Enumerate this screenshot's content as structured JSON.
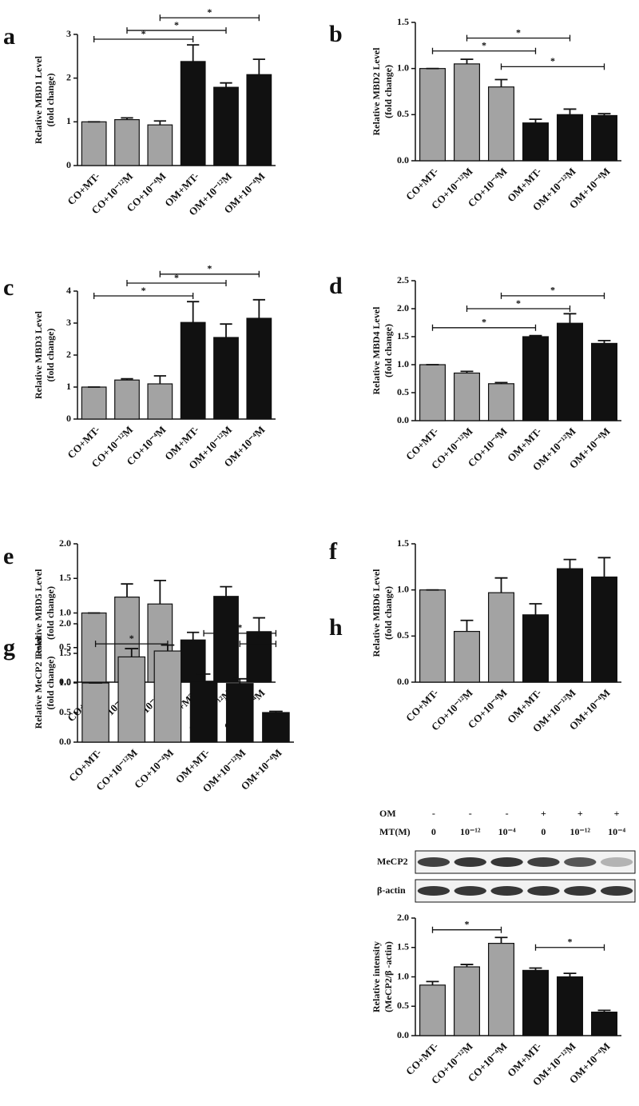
{
  "chart_data": [
    {
      "type": "bar",
      "panel": "a",
      "ylabel": [
        "Relative MBD1 Level",
        "(fold change)"
      ],
      "categories": [
        "CO+MT-",
        "CO+10⁻¹²M",
        "CO+10⁻⁴M",
        "OM+MT-",
        "OM+10⁻¹²M",
        "OM+10⁻⁴M"
      ],
      "values": [
        1.0,
        1.05,
        0.93,
        2.38,
        1.79,
        2.08
      ],
      "errors": [
        0,
        0.04,
        0.09,
        0.38,
        0.1,
        0.35
      ],
      "colors": [
        "#a3a3a3",
        "#a3a3a3",
        "#a3a3a3",
        "#111111",
        "#111111",
        "#111111"
      ],
      "ylim": [
        0,
        3
      ],
      "yticks": [
        0,
        1,
        2,
        3
      ],
      "brackets": [
        {
          "from": 0,
          "to": 3,
          "y": 2.89,
          "label": "*"
        },
        {
          "from": 1,
          "to": 4,
          "y": 3.09,
          "label": "*"
        },
        {
          "from": 2,
          "to": 5,
          "y": 3.38,
          "label": "*"
        }
      ]
    },
    {
      "type": "bar",
      "panel": "b",
      "ylabel": [
        "Relative MBD2 Level",
        "(fold change)"
      ],
      "categories": [
        "CO+MT-",
        "CO+10⁻¹²M",
        "CO+10⁻⁴M",
        "OM+MT-",
        "OM+10⁻¹²M",
        "OM+10⁻⁴M"
      ],
      "values": [
        1.0,
        1.05,
        0.8,
        0.41,
        0.5,
        0.49
      ],
      "errors": [
        0,
        0.05,
        0.08,
        0.04,
        0.06,
        0.02
      ],
      "colors": [
        "#a3a3a3",
        "#a3a3a3",
        "#a3a3a3",
        "#111111",
        "#111111",
        "#111111"
      ],
      "ylim": [
        0,
        1.5
      ],
      "yticks": [
        {
          "value": 0,
          "label": "0.0"
        },
        {
          "value": 0.5,
          "label": "0.5"
        },
        {
          "value": 1,
          "label": "1.0"
        },
        {
          "value": 1.5,
          "label": "1.5"
        }
      ],
      "brackets": [
        {
          "from": 0,
          "to": 3,
          "y": 1.19,
          "label": "*"
        },
        {
          "from": 1,
          "to": 4,
          "y": 1.33,
          "label": "*"
        },
        {
          "from": 2,
          "to": 5,
          "y": 1.02,
          "label": "*"
        }
      ]
    },
    {
      "type": "bar",
      "panel": "c",
      "ylabel": [
        "Relative MBD3 Level",
        "(fold change)"
      ],
      "categories": [
        "CO+MT-",
        "CO+10⁻¹²M",
        "CO+10⁻⁴M",
        "OM+MT-",
        "OM+10⁻¹²M",
        "OM+10⁻⁴M"
      ],
      "values": [
        1.0,
        1.22,
        1.1,
        3.02,
        2.55,
        3.15
      ],
      "errors": [
        0,
        0.04,
        0.25,
        0.65,
        0.42,
        0.58
      ],
      "colors": [
        "#a3a3a3",
        "#a3a3a3",
        "#a3a3a3",
        "#111111",
        "#111111",
        "#111111"
      ],
      "ylim": [
        0,
        4
      ],
      "yticks": [
        0,
        1,
        2,
        3,
        4
      ],
      "brackets": [
        {
          "from": 0,
          "to": 3,
          "y": 3.85,
          "label": "*"
        },
        {
          "from": 1,
          "to": 4,
          "y": 4.25,
          "label": "*"
        },
        {
          "from": 2,
          "to": 5,
          "y": 4.53,
          "label": "*"
        }
      ]
    },
    {
      "type": "bar",
      "panel": "d",
      "ylabel": [
        "Relative MBD4 Level",
        "(fold change)"
      ],
      "categories": [
        "CO+MT-",
        "CO+10⁻¹²M",
        "CO+10⁻⁴M",
        "OM+MT-",
        "OM+10⁻¹²M",
        "OM+10⁻⁴M"
      ],
      "values": [
        1.0,
        0.85,
        0.66,
        1.5,
        1.74,
        1.38
      ],
      "errors": [
        0,
        0.03,
        0.02,
        0.02,
        0.17,
        0.05
      ],
      "colors": [
        "#a3a3a3",
        "#a3a3a3",
        "#a3a3a3",
        "#111111",
        "#111111",
        "#111111"
      ],
      "ylim": [
        0,
        2.5
      ],
      "yticks": [
        {
          "value": 0,
          "label": "0.0"
        },
        {
          "value": 0.5,
          "label": "0.5"
        },
        {
          "value": 1,
          "label": "1.0"
        },
        {
          "value": 1.5,
          "label": "1.5"
        },
        {
          "value": 2,
          "label": "2.0"
        },
        {
          "value": 2.5,
          "label": "2.5"
        }
      ],
      "brackets": [
        {
          "from": 0,
          "to": 3,
          "y": 1.66,
          "label": "*"
        },
        {
          "from": 1,
          "to": 4,
          "y": 2.0,
          "label": "*"
        },
        {
          "from": 2,
          "to": 5,
          "y": 2.23,
          "label": "*"
        }
      ]
    },
    {
      "type": "bar",
      "panel": "e",
      "ylabel": [
        "Relative MBD5 Level",
        "(fold change)"
      ],
      "categories": [
        "CO+MT-",
        "CO+10⁻¹²M",
        "CO+10⁻⁴M",
        "OM+MT-",
        "OM+10⁻¹²M",
        "OM+10⁻⁴M"
      ],
      "values": [
        1.0,
        1.23,
        1.13,
        0.61,
        1.24,
        0.73
      ],
      "errors": [
        0,
        0.19,
        0.34,
        0.11,
        0.14,
        0.2
      ],
      "colors": [
        "#a3a3a3",
        "#a3a3a3",
        "#a3a3a3",
        "#111111",
        "#111111",
        "#111111"
      ],
      "ylim": [
        0,
        2
      ],
      "yticks": [
        {
          "value": 0,
          "label": "0.0"
        },
        {
          "value": 0.5,
          "label": "0.5"
        },
        {
          "value": 1,
          "label": "1.0"
        },
        {
          "value": 1.5,
          "label": "1.5"
        },
        {
          "value": 2,
          "label": "2.0"
        }
      ]
    },
    {
      "type": "bar",
      "panel": "f",
      "ylabel": [
        "Relative MBD6 Level",
        "(fold change)"
      ],
      "categories": [
        "CO+MT-",
        "CO+10⁻¹²M",
        "CO+10⁻⁴M",
        "OM+MT-",
        "OM+10⁻¹²M",
        "OM+10⁻⁴M"
      ],
      "values": [
        1.0,
        0.55,
        0.97,
        0.73,
        1.23,
        1.14
      ],
      "errors": [
        0,
        0.12,
        0.16,
        0.12,
        0.1,
        0.21
      ],
      "colors": [
        "#a3a3a3",
        "#a3a3a3",
        "#a3a3a3",
        "#111111",
        "#111111",
        "#111111"
      ],
      "ylim": [
        0,
        1.5
      ],
      "yticks": [
        {
          "value": 0,
          "label": "0.0"
        },
        {
          "value": 0.5,
          "label": "0.5"
        },
        {
          "value": 1,
          "label": "1.0"
        },
        {
          "value": 1.5,
          "label": "1.5"
        }
      ]
    },
    {
      "type": "bar",
      "panel": "g",
      "ylabel": [
        "Relative MeCP2 Level",
        "(fold change)"
      ],
      "categories": [
        "CO+MT-",
        "CO+10⁻¹²M",
        "CO+10⁻⁴M",
        "OM+MT-",
        "OM+10⁻¹²M",
        "OM+10⁻⁴M"
      ],
      "values": [
        1.0,
        1.44,
        1.54,
        1.03,
        0.99,
        0.5
      ],
      "errors": [
        0,
        0.14,
        0.1,
        0.12,
        0.08,
        0.02
      ],
      "colors": [
        "#a3a3a3",
        "#a3a3a3",
        "#a3a3a3",
        "#111111",
        "#111111",
        "#111111"
      ],
      "ylim": [
        0,
        2
      ],
      "yticks": [
        {
          "value": 0,
          "label": "0.0"
        },
        {
          "value": 0.5,
          "label": "0.5"
        },
        {
          "value": 1,
          "label": "1.0"
        },
        {
          "value": 1.5,
          "label": "1.5"
        },
        {
          "value": 2,
          "label": "2.0"
        }
      ],
      "brackets": [
        {
          "from": 0,
          "to": 2,
          "y": 1.66,
          "label": "*"
        },
        {
          "from": 3,
          "to": 5,
          "y": 1.84,
          "label": "*"
        },
        {
          "from": 4,
          "to": 5,
          "y": 1.66,
          "label": "*"
        }
      ]
    },
    {
      "type": "bar",
      "panel": "h",
      "ylabel": [
        "Relative intensity",
        "(MeCP2/β -actin)"
      ],
      "categories": [
        "CO+MT-",
        "CO+10⁻¹²M",
        "CO+10⁻⁴M",
        "OM+MT-",
        "OM+10⁻¹²M",
        "OM+10⁻⁴M"
      ],
      "values": [
        0.86,
        1.17,
        1.57,
        1.11,
        1.0,
        0.4
      ],
      "errors": [
        0.06,
        0.04,
        0.1,
        0.04,
        0.06,
        0.03
      ],
      "colors": [
        "#a3a3a3",
        "#a3a3a3",
        "#a3a3a3",
        "#111111",
        "#111111",
        "#111111"
      ],
      "ylim": [
        0,
        2
      ],
      "yticks": [
        {
          "value": 0,
          "label": "0.0"
        },
        {
          "value": 0.5,
          "label": "0.5"
        },
        {
          "value": 1,
          "label": "1.0"
        },
        {
          "value": 1.5,
          "label": "1.5"
        },
        {
          "value": 2,
          "label": "2.0"
        }
      ],
      "brackets": [
        {
          "from": 0,
          "to": 2,
          "y": 1.8,
          "label": "*"
        },
        {
          "from": 3,
          "to": 5,
          "y": 1.5,
          "label": "*"
        }
      ],
      "blot": {
        "rows": [
          {
            "label": "OM",
            "lanes": [
              "-",
              "-",
              "-",
              "+",
              "+",
              "+"
            ]
          },
          {
            "label": "MT(M)",
            "lanes": [
              "0",
              "10⁻¹²",
              "10⁻⁴",
              "0",
              "10⁻¹²",
              "10⁻⁴"
            ]
          }
        ],
        "bands": [
          "MeCP2",
          "β-actin"
        ]
      }
    }
  ]
}
